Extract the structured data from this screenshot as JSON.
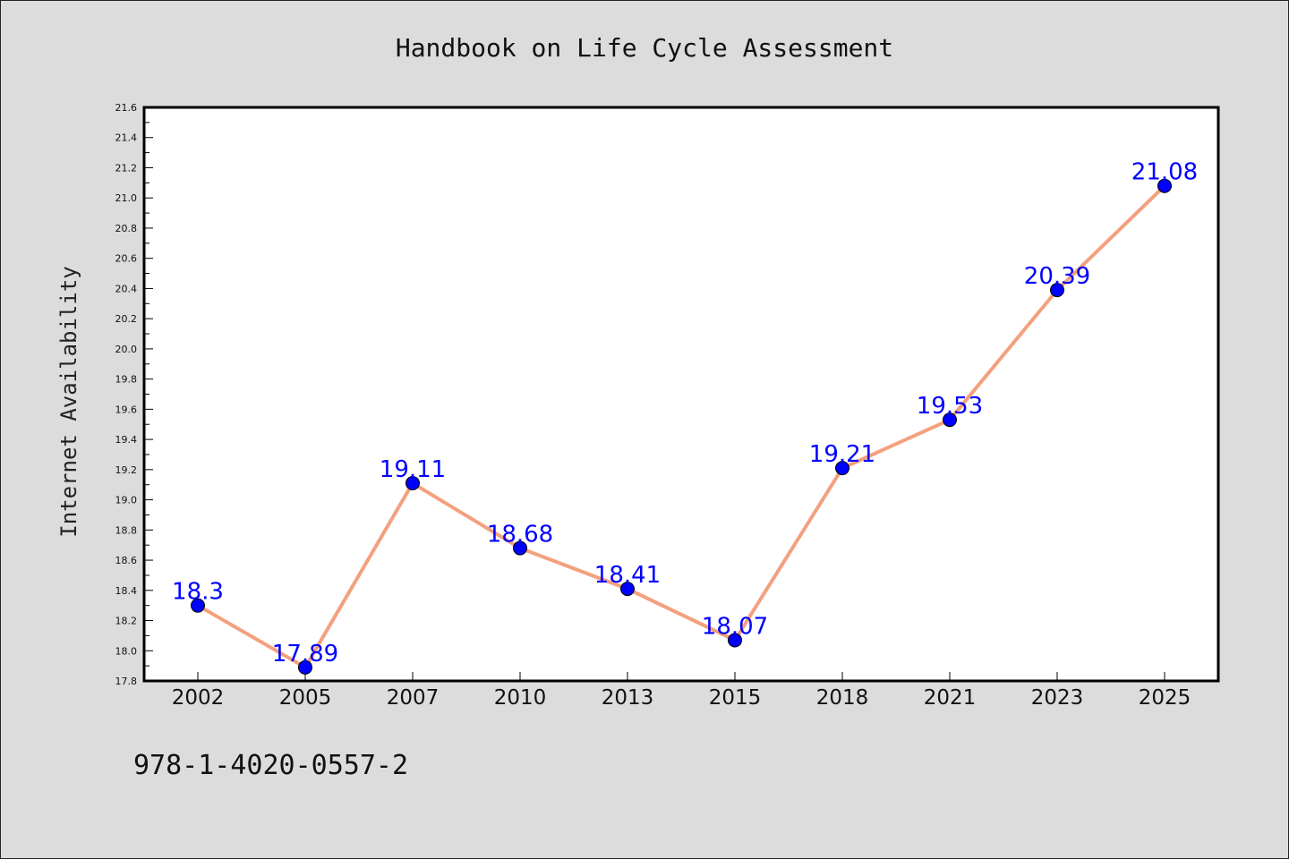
{
  "chart_data": {
    "type": "line",
    "title": "Handbook on Life Cycle Assessment",
    "xlabel": "",
    "ylabel": "Internet Availability",
    "categories": [
      "2002",
      "2005",
      "2007",
      "2010",
      "2013",
      "2015",
      "2018",
      "2021",
      "2023",
      "2025"
    ],
    "series": [
      {
        "values": [
          18.3,
          17.89,
          19.11,
          18.68,
          18.41,
          18.07,
          19.21,
          19.53,
          20.39,
          21.08
        ]
      }
    ],
    "data_labels": [
      "18.3",
      "17.89",
      "19.11",
      "18.68",
      "18.41",
      "18.07",
      "19.21",
      "19.53",
      "20.39",
      "21.08"
    ],
    "ylim": [
      17.8,
      21.6
    ],
    "yticks": [
      "17.8",
      "18.0",
      "18.2",
      "18.4",
      "18.6",
      "18.8",
      "19.0",
      "19.2",
      "19.4",
      "19.6",
      "19.8",
      "20.0",
      "20.2",
      "20.4",
      "20.6",
      "20.8",
      "21.0",
      "21.2",
      "21.4",
      "21.6"
    ],
    "grid": false,
    "line_color": "#f4a07e",
    "marker_color": "#0000ff",
    "label_color": "#0000ff"
  },
  "footer": {
    "isbn": "978-1-4020-0557-2"
  },
  "colors": {
    "background": "#dcdcdc",
    "plot_background": "#ffffff"
  }
}
